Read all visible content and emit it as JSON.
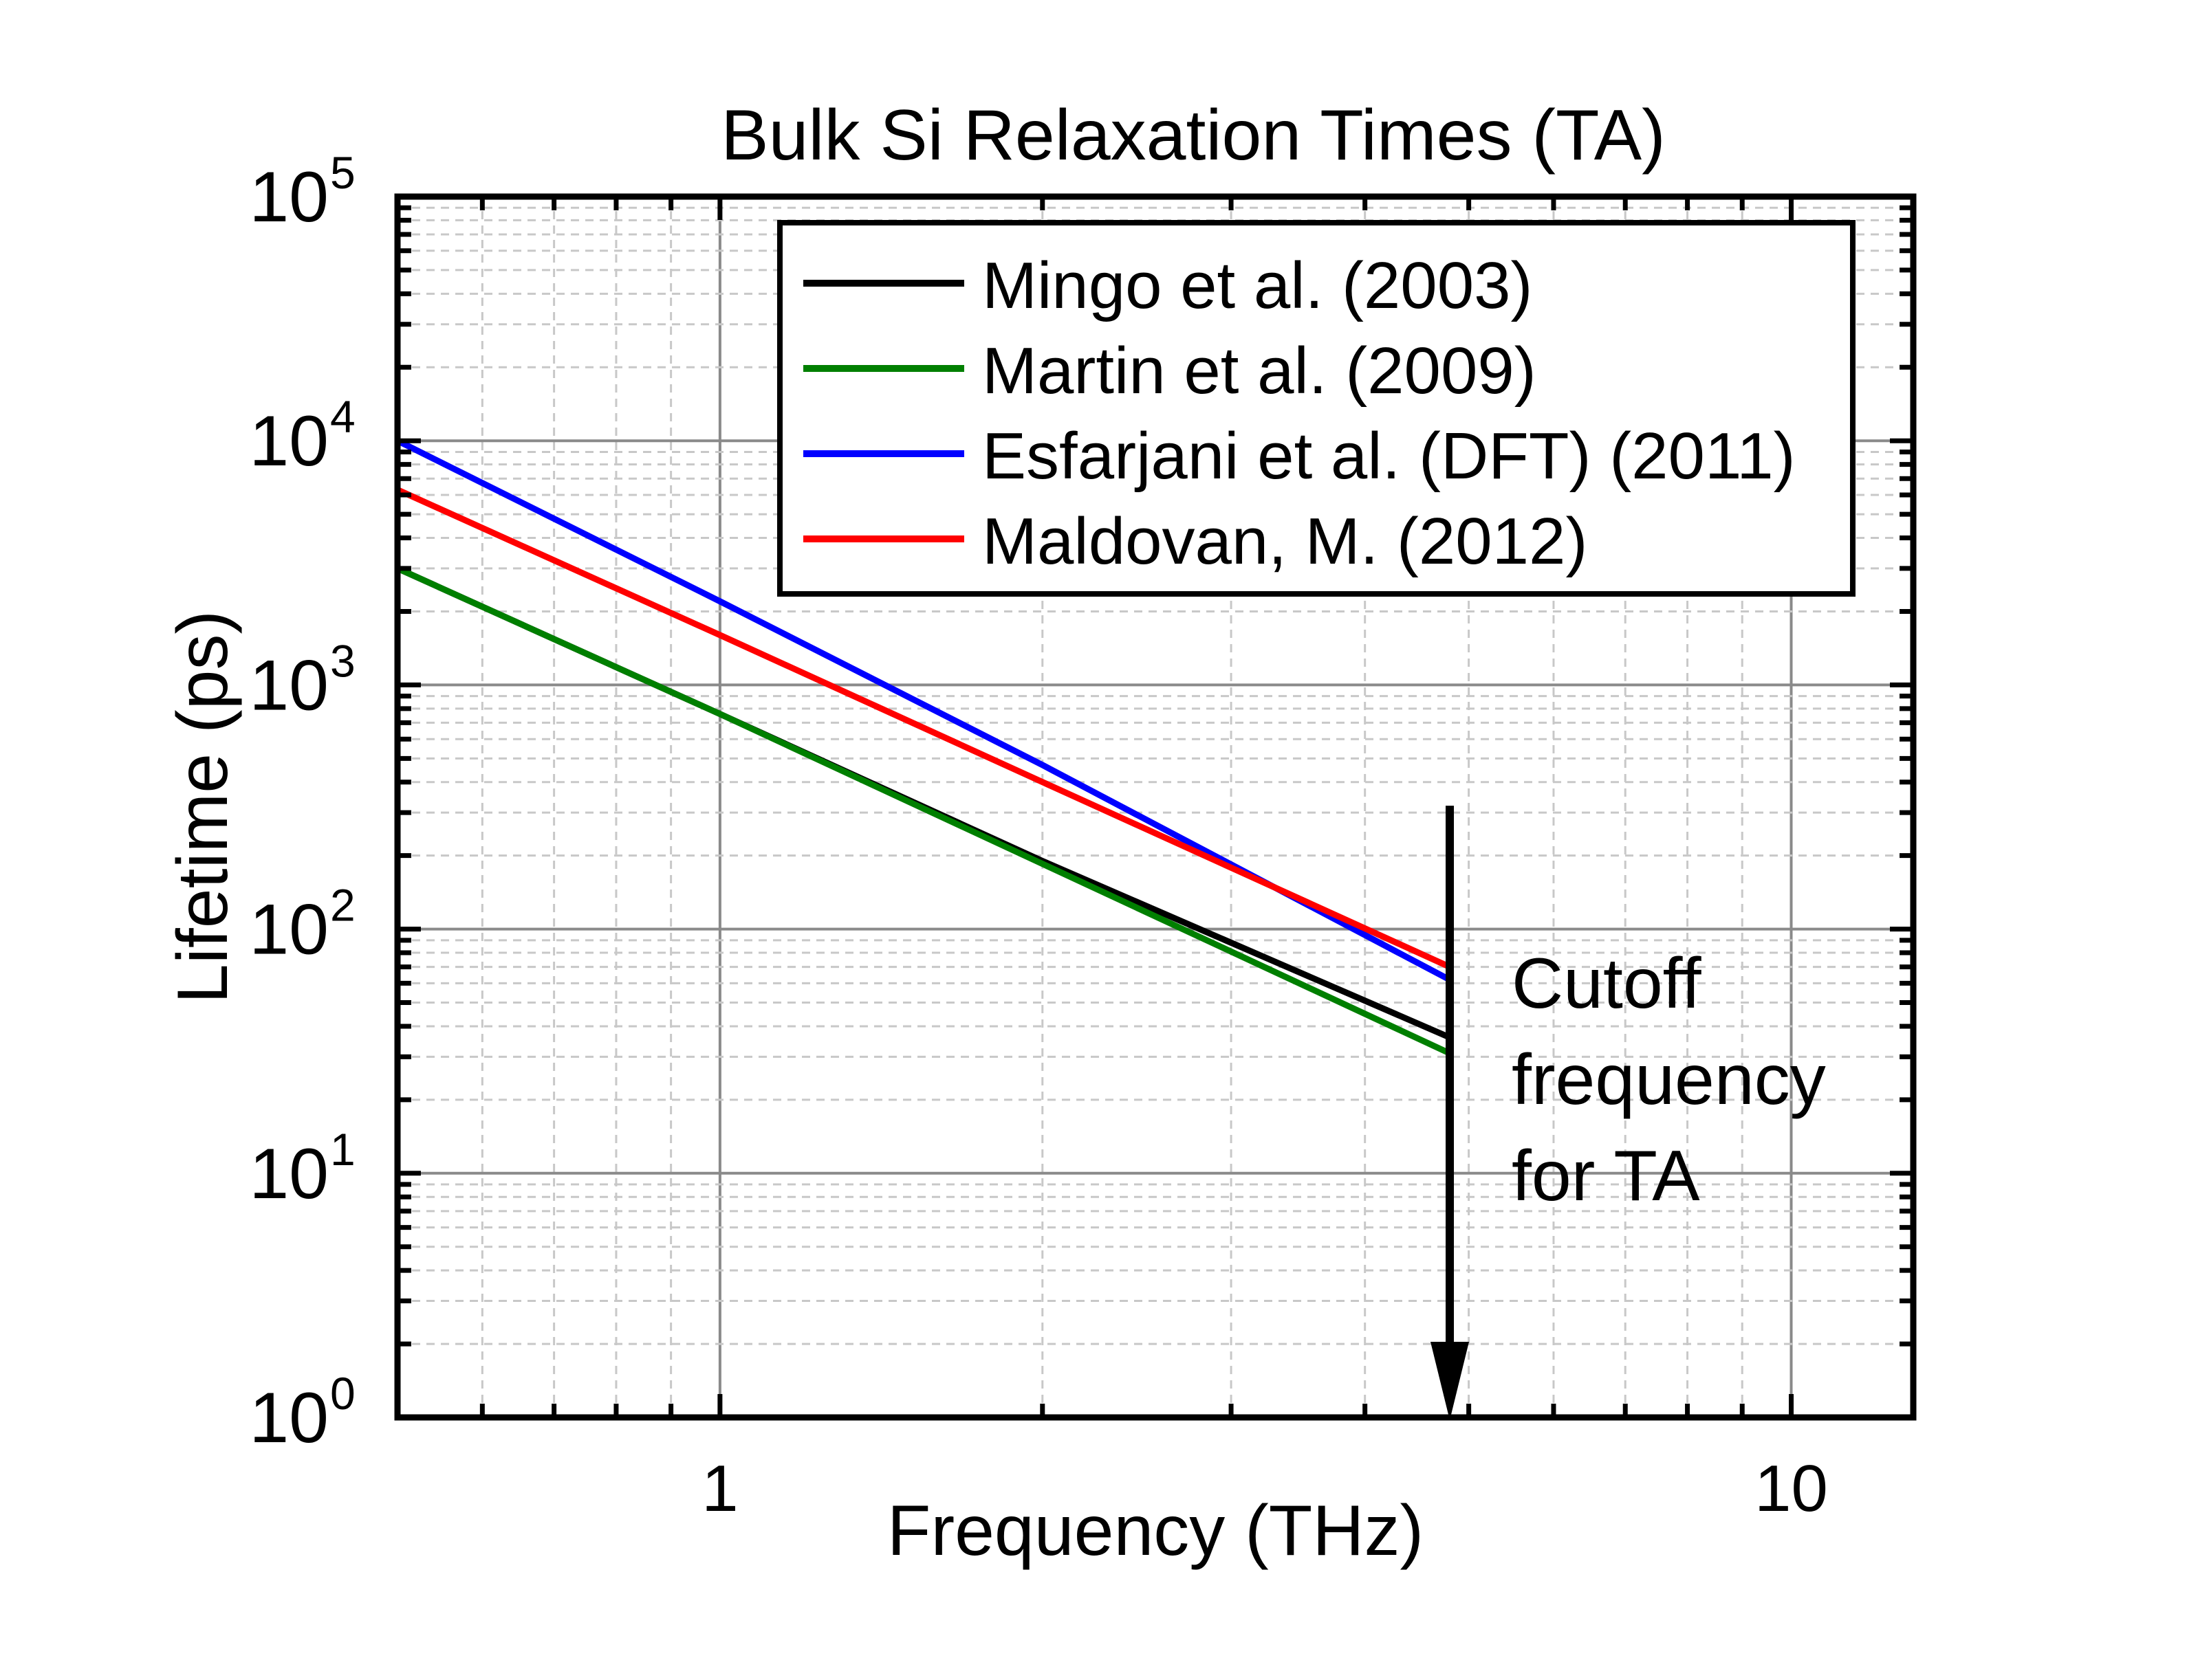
{
  "chart_data": {
    "type": "line",
    "title": "Bulk Si Relaxation Times (TA)",
    "xlabel": "Frequency (THz)",
    "ylabel": "Lifetime (ps)",
    "x_scale": "log",
    "y_scale": "log",
    "xlim": [
      0.5,
      13
    ],
    "ylim": [
      1,
      100000
    ],
    "x_ticks": [
      1,
      10
    ],
    "x_tick_labels": [
      "1",
      "10"
    ],
    "y_ticks": [
      1,
      10,
      100,
      1000,
      10000,
      100000
    ],
    "y_tick_labels": [
      {
        "base": "10",
        "exp": "0"
      },
      {
        "base": "10",
        "exp": "1"
      },
      {
        "base": "10",
        "exp": "2"
      },
      {
        "base": "10",
        "exp": "3"
      },
      {
        "base": "10",
        "exp": "4"
      },
      {
        "base": "10",
        "exp": "5"
      }
    ],
    "grid": true,
    "legend_position": "top-right",
    "series": [
      {
        "name": "Mingo et al. (2003)",
        "color": "#000000",
        "x": [
          0.5,
          1,
          2,
          4.8
        ],
        "y": [
          3000,
          760,
          190,
          36
        ]
      },
      {
        "name": "Martin et al. (2009)",
        "color": "#007f00",
        "x": [
          0.5,
          1,
          2,
          4.8
        ],
        "y": [
          3000,
          760,
          185,
          31
        ]
      },
      {
        "name": "Esfarjani et al. (DFT) (2011)",
        "color": "#0000ff",
        "x": [
          0.5,
          1,
          2,
          4.8
        ],
        "y": [
          10000,
          2200,
          470,
          62
        ]
      },
      {
        "name": "Maldovan, M. (2012)",
        "color": "#ff0000",
        "x": [
          0.5,
          1,
          2,
          4.8
        ],
        "y": [
          6300,
          1600,
          400,
          70
        ]
      }
    ],
    "annotation": {
      "lines": [
        "Cutoff",
        "frequency",
        "for TA"
      ],
      "arrow_x": 4.8,
      "arrow_from_y": 320,
      "arrow_to_y": 1
    }
  }
}
